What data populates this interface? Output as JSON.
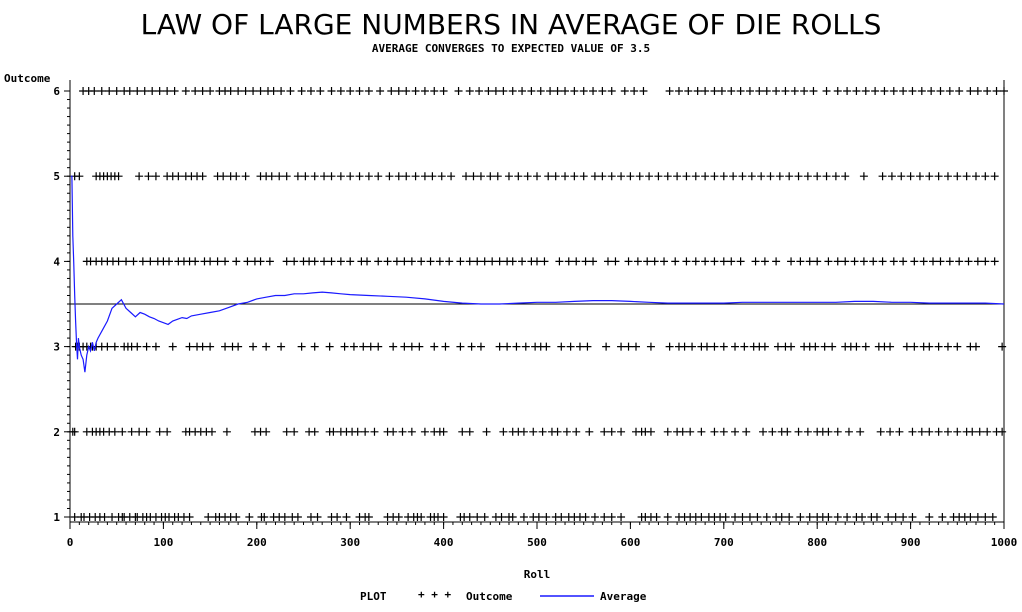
{
  "chart_data": {
    "type": "scatter",
    "title": "LAW OF LARGE NUMBERS IN AVERAGE OF DIE ROLLS",
    "subtitle": "AVERAGE CONVERGES TO EXPECTED VALUE OF 3.5",
    "xlabel": "Roll",
    "ylabel": "Outcome",
    "xlim": [
      0,
      1000
    ],
    "ylim": [
      1,
      6
    ],
    "xticks": [
      0,
      100,
      200,
      300,
      400,
      500,
      600,
      700,
      800,
      900,
      1000
    ],
    "yticks": [
      1,
      2,
      3,
      4,
      5,
      6
    ],
    "reference_line": {
      "y": 3.5,
      "color": "#000000"
    },
    "legend": {
      "placement": "bottom",
      "title": "PLOT",
      "entries": [
        {
          "symbol": "+ + +",
          "label": "Outcome",
          "color": "#000000"
        },
        {
          "symbol": "line",
          "label": "Average",
          "color": "#1a1aff"
        }
      ]
    },
    "series": [
      {
        "name": "Outcome",
        "color": "#000000",
        "marker": "plus",
        "rolls_by_value": {
          "1": [
            5,
            12,
            15,
            21,
            27,
            32,
            37,
            45,
            52,
            56,
            58,
            64,
            70,
            72,
            78,
            82,
            86,
            92,
            98,
            102,
            106,
            112,
            116,
            122,
            128,
            148,
            156,
            160,
            166,
            172,
            178,
            192,
            205,
            208,
            218,
            224,
            230,
            238,
            244,
            258,
            265,
            280,
            286,
            296,
            310,
            316,
            320,
            340,
            346,
            352,
            362,
            368,
            372,
            376,
            386,
            390,
            394,
            400,
            418,
            422,
            428,
            436,
            444,
            456,
            462,
            470,
            474,
            486,
            496,
            502,
            510,
            520,
            526,
            534,
            540,
            546,
            552,
            562,
            572,
            580,
            590,
            612,
            616,
            622,
            628,
            640,
            652,
            658,
            664,
            670,
            676,
            684,
            690,
            696,
            702,
            712,
            720,
            728,
            736,
            746,
            756,
            762,
            770,
            782,
            792,
            800,
            806,
            812,
            822,
            832,
            842,
            848,
            858,
            864,
            876,
            884,
            892,
            902,
            920,
            934,
            946,
            952,
            958,
            964,
            972,
            980,
            988
          ],
          "2": [
            3,
            5,
            18,
            24,
            28,
            32,
            36,
            42,
            48,
            56,
            66,
            74,
            82,
            96,
            104,
            124,
            128,
            134,
            140,
            146,
            152,
            168,
            198,
            204,
            210,
            232,
            240,
            256,
            262,
            278,
            282,
            290,
            296,
            302,
            308,
            316,
            326,
            340,
            346,
            356,
            366,
            380,
            390,
            396,
            400,
            420,
            428,
            446,
            464,
            474,
            480,
            486,
            496,
            506,
            516,
            522,
            532,
            542,
            556,
            572,
            580,
            590,
            606,
            612,
            616,
            622,
            640,
            650,
            656,
            664,
            676,
            690,
            700,
            712,
            724,
            742,
            752,
            762,
            768,
            780,
            790,
            800,
            806,
            812,
            822,
            834,
            846,
            868,
            878,
            888,
            902,
            912,
            920,
            930,
            940,
            950,
            960,
            966,
            974,
            982,
            992,
            998
          ],
          "3": [
            6,
            8,
            10,
            14,
            18,
            22,
            24,
            28,
            34,
            40,
            48,
            58,
            62,
            66,
            72,
            82,
            92,
            110,
            128,
            136,
            142,
            150,
            166,
            174,
            180,
            196,
            210,
            226,
            248,
            262,
            278,
            294,
            304,
            314,
            322,
            330,
            346,
            358,
            366,
            374,
            390,
            402,
            418,
            430,
            440,
            460,
            468,
            478,
            488,
            498,
            504,
            510,
            526,
            536,
            546,
            554,
            574,
            590,
            598,
            606,
            622,
            642,
            652,
            658,
            666,
            676,
            682,
            690,
            700,
            712,
            722,
            732,
            738,
            744,
            758,
            766,
            772,
            786,
            792,
            798,
            808,
            816,
            830,
            836,
            842,
            852,
            866,
            872,
            878,
            896,
            904,
            914,
            920,
            930,
            940,
            950,
            964,
            970,
            998
          ],
          "4": [
            18,
            22,
            28,
            34,
            40,
            46,
            52,
            60,
            68,
            78,
            86,
            94,
            100,
            106,
            116,
            122,
            128,
            134,
            144,
            150,
            158,
            166,
            178,
            190,
            198,
            204,
            214,
            232,
            240,
            250,
            256,
            262,
            272,
            280,
            290,
            300,
            312,
            318,
            330,
            340,
            350,
            358,
            366,
            376,
            386,
            396,
            406,
            418,
            428,
            436,
            444,
            452,
            460,
            468,
            474,
            484,
            494,
            500,
            508,
            524,
            534,
            542,
            552,
            560,
            576,
            584,
            598,
            608,
            618,
            626,
            636,
            648,
            660,
            670,
            680,
            690,
            700,
            708,
            718,
            734,
            744,
            756,
            772,
            782,
            792,
            800,
            812,
            822,
            830,
            840,
            850,
            860,
            870,
            882,
            892,
            904,
            914,
            924,
            932,
            942,
            952,
            962,
            972,
            980,
            990
          ],
          "5": [
            5,
            10,
            28,
            32,
            36,
            40,
            44,
            48,
            52,
            74,
            84,
            92,
            104,
            110,
            116,
            124,
            130,
            136,
            142,
            158,
            164,
            172,
            178,
            188,
            204,
            210,
            216,
            224,
            232,
            244,
            252,
            262,
            272,
            280,
            290,
            300,
            310,
            320,
            330,
            342,
            352,
            360,
            370,
            380,
            388,
            398,
            408,
            424,
            432,
            440,
            450,
            458,
            470,
            480,
            490,
            500,
            512,
            520,
            530,
            540,
            550,
            562,
            570,
            580,
            590,
            600,
            610,
            620,
            630,
            640,
            650,
            660,
            670,
            680,
            690,
            700,
            710,
            720,
            730,
            740,
            750,
            760,
            770,
            780,
            790,
            800,
            810,
            820,
            830,
            850,
            870,
            880,
            890,
            900,
            910,
            920,
            930,
            940,
            950,
            960,
            970,
            980,
            990
          ],
          "6": [
            14,
            20,
            26,
            34,
            42,
            50,
            58,
            64,
            72,
            80,
            88,
            96,
            104,
            112,
            124,
            134,
            142,
            150,
            160,
            166,
            172,
            180,
            188,
            196,
            204,
            212,
            218,
            226,
            236,
            248,
            258,
            268,
            280,
            290,
            300,
            310,
            320,
            332,
            344,
            352,
            360,
            370,
            380,
            390,
            400,
            416,
            428,
            438,
            448,
            456,
            464,
            474,
            484,
            494,
            504,
            514,
            522,
            530,
            540,
            550,
            560,
            570,
            580,
            594,
            604,
            614,
            642,
            652,
            662,
            672,
            680,
            690,
            698,
            708,
            718,
            728,
            738,
            746,
            756,
            766,
            776,
            786,
            796,
            810,
            822,
            832,
            842,
            852,
            862,
            872,
            882,
            892,
            902,
            912,
            922,
            932,
            942,
            952,
            964,
            972,
            982,
            992,
            1000
          ]
        }
      },
      {
        "name": "Average",
        "color": "#1a1aff",
        "type": "line",
        "x": [
          1,
          2,
          3,
          4,
          5,
          6,
          7,
          8,
          9,
          10,
          12,
          14,
          16,
          18,
          20,
          22,
          24,
          26,
          28,
          30,
          35,
          40,
          45,
          50,
          55,
          60,
          65,
          70,
          75,
          80,
          85,
          90,
          95,
          100,
          105,
          110,
          115,
          120,
          125,
          130,
          140,
          150,
          160,
          170,
          180,
          190,
          200,
          210,
          220,
          230,
          240,
          250,
          260,
          270,
          280,
          290,
          300,
          320,
          340,
          360,
          380,
          400,
          420,
          440,
          460,
          480,
          500,
          520,
          540,
          560,
          580,
          600,
          620,
          640,
          660,
          680,
          700,
          720,
          740,
          760,
          780,
          800,
          820,
          840,
          860,
          880,
          900,
          920,
          940,
          960,
          980,
          1000
        ],
        "y": [
          5.0,
          5.0,
          4.3,
          4.0,
          3.6,
          3.3,
          3.05,
          2.85,
          3.1,
          3.0,
          2.9,
          2.85,
          2.7,
          2.9,
          3.0,
          2.95,
          3.05,
          2.95,
          3.05,
          3.1,
          3.2,
          3.3,
          3.45,
          3.5,
          3.55,
          3.45,
          3.4,
          3.35,
          3.4,
          3.38,
          3.35,
          3.33,
          3.3,
          3.28,
          3.26,
          3.3,
          3.32,
          3.34,
          3.33,
          3.36,
          3.38,
          3.4,
          3.42,
          3.46,
          3.5,
          3.52,
          3.56,
          3.58,
          3.6,
          3.6,
          3.62,
          3.62,
          3.63,
          3.64,
          3.63,
          3.62,
          3.61,
          3.6,
          3.59,
          3.58,
          3.56,
          3.53,
          3.51,
          3.5,
          3.5,
          3.51,
          3.52,
          3.52,
          3.53,
          3.54,
          3.54,
          3.53,
          3.52,
          3.51,
          3.51,
          3.51,
          3.51,
          3.52,
          3.52,
          3.52,
          3.52,
          3.52,
          3.52,
          3.53,
          3.53,
          3.52,
          3.52,
          3.51,
          3.51,
          3.51,
          3.51,
          3.5
        ]
      }
    ]
  }
}
